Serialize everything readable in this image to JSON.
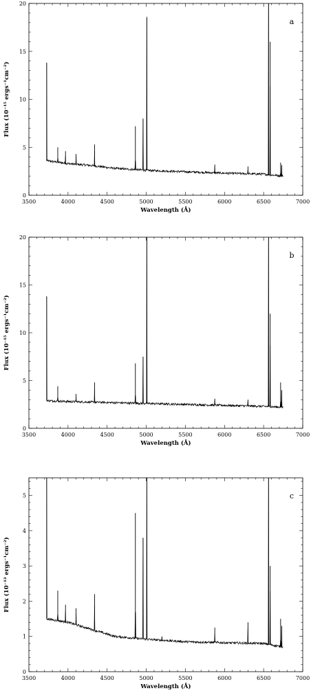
{
  "colors": {
    "ink": "#000000",
    "background": "#ffffff"
  },
  "chart_data": [
    {
      "type": "line",
      "panel_label": "a",
      "xlabel": "Wavelength (Å)",
      "ylabel": "Flux (10⁻¹⁵ ergs⁻¹cm⁻²)",
      "xlim": [
        3500,
        7000
      ],
      "ylim": [
        0,
        20
      ],
      "xticks": [
        3500,
        4000,
        4500,
        5000,
        5500,
        6000,
        6500,
        7000
      ],
      "yticks": [
        0,
        5,
        10,
        15,
        20
      ],
      "grid": false,
      "series": [
        {
          "continuum": [
            [
              3727,
              3.6
            ],
            [
              4000,
              3.3
            ],
            [
              4300,
              3.1
            ],
            [
              4600,
              2.8
            ],
            [
              5000,
              2.6
            ],
            [
              5500,
              2.45
            ],
            [
              6000,
              2.3
            ],
            [
              6500,
              2.2
            ],
            [
              6750,
              2.0
            ]
          ],
          "lines": [
            [
              3727,
              13.8
            ],
            [
              3869,
              5.0
            ],
            [
              3968,
              4.6
            ],
            [
              4102,
              4.3
            ],
            [
              4340,
              5.3
            ],
            [
              4861,
              7.2
            ],
            [
              4959,
              8.0
            ],
            [
              5007,
              18.5
            ],
            [
              5876,
              3.2
            ],
            [
              6300,
              3.0
            ],
            [
              6563,
              20
            ],
            [
              6584,
              16
            ],
            [
              6717,
              3.4
            ],
            [
              6731,
              3.1
            ]
          ]
        }
      ]
    },
    {
      "type": "line",
      "panel_label": "b",
      "xlabel": "Wavelength (Å)",
      "ylabel": "Flux (10⁻¹⁵ ergs⁻¹cm⁻²)",
      "xlim": [
        3500,
        7000
      ],
      "ylim": [
        0,
        20
      ],
      "xticks": [
        3500,
        4000,
        4500,
        5000,
        5500,
        6000,
        6500,
        7000
      ],
      "yticks": [
        0,
        5,
        10,
        15,
        20
      ],
      "grid": false,
      "series": [
        {
          "continuum": [
            [
              3727,
              2.9
            ],
            [
              4000,
              2.8
            ],
            [
              4500,
              2.7
            ],
            [
              5000,
              2.6
            ],
            [
              5500,
              2.5
            ],
            [
              6000,
              2.4
            ],
            [
              6500,
              2.3
            ],
            [
              6750,
              2.2
            ]
          ],
          "lines": [
            [
              3727,
              13.8
            ],
            [
              3869,
              4.4
            ],
            [
              4102,
              3.6
            ],
            [
              4340,
              4.8
            ],
            [
              4861,
              6.8
            ],
            [
              4959,
              7.5
            ],
            [
              5007,
              20
            ],
            [
              5876,
              3.1
            ],
            [
              6300,
              3.0
            ],
            [
              6563,
              20
            ],
            [
              6584,
              12
            ],
            [
              6717,
              4.8
            ],
            [
              6731,
              4.0
            ]
          ]
        }
      ]
    },
    {
      "type": "line",
      "panel_label": "c",
      "xlabel": "Wavelength (Å)",
      "ylabel": "Flux (10⁻¹³ ergs⁻¹cm⁻²)",
      "xlim": [
        3500,
        7000
      ],
      "ylim": [
        0,
        5.5
      ],
      "xticks": [
        3500,
        4000,
        4500,
        5000,
        5500,
        6000,
        6500,
        7000
      ],
      "yticks": [
        0,
        1,
        2,
        3,
        4,
        5
      ],
      "grid": false,
      "series": [
        {
          "continuum": [
            [
              3727,
              1.5
            ],
            [
              4000,
              1.4
            ],
            [
              4300,
              1.2
            ],
            [
              4600,
              1.0
            ],
            [
              5000,
              0.92
            ],
            [
              5500,
              0.85
            ],
            [
              6000,
              0.82
            ],
            [
              6500,
              0.8
            ],
            [
              6750,
              0.7
            ]
          ],
          "lines": [
            [
              3727,
              5.5
            ],
            [
              3869,
              2.3
            ],
            [
              3968,
              1.9
            ],
            [
              4102,
              1.8
            ],
            [
              4340,
              2.2
            ],
            [
              4861,
              4.5
            ],
            [
              4959,
              3.8
            ],
            [
              5007,
              5.5
            ],
            [
              5200,
              1.0
            ],
            [
              5876,
              1.25
            ],
            [
              6300,
              1.4
            ],
            [
              6563,
              5.5
            ],
            [
              6584,
              3.0
            ],
            [
              6717,
              1.5
            ],
            [
              6731,
              1.3
            ]
          ]
        }
      ]
    }
  ]
}
